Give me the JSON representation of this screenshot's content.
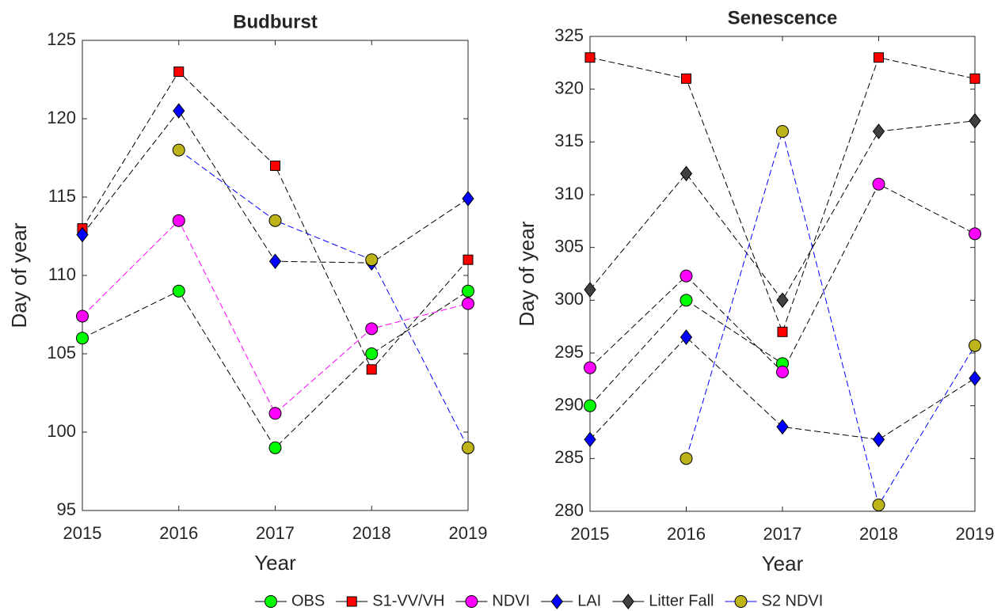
{
  "chart_data": [
    {
      "type": "line",
      "title": "Budburst",
      "x_label": "Year",
      "y_label": "Day of year",
      "x": [
        2015,
        2016,
        2017,
        2018,
        2019
      ],
      "xlim": [
        2015,
        2019
      ],
      "xticks": [
        2015,
        2016,
        2017,
        2018,
        2019
      ],
      "ylim": [
        95,
        125
      ],
      "yticks": [
        95,
        100,
        105,
        110,
        115,
        120,
        125
      ],
      "grid": false,
      "series": [
        {
          "name": "OBS",
          "color": "#00ff00",
          "line_color": "#000000",
          "marker": "circle",
          "values": [
            106,
            109,
            99,
            105,
            109
          ]
        },
        {
          "name": "S1-VV/VH",
          "color": "#ff0000",
          "line_color": "#000000",
          "marker": "square",
          "values": [
            113,
            123,
            117,
            104,
            111
          ]
        },
        {
          "name": "NDVI",
          "color": "#ff00ff",
          "line_color": "#ff00ff",
          "marker": "circle",
          "values": [
            107.4,
            113.5,
            101.2,
            106.6,
            108.2
          ]
        },
        {
          "name": "LAI",
          "color": "#0000ff",
          "line_color": "#000000",
          "marker": "diamond",
          "values": [
            112.6,
            120.5,
            110.9,
            110.8,
            114.9
          ]
        },
        {
          "name": "S2 NDVI",
          "color": "#bcb418",
          "line_color": "#0000ff",
          "marker": "circle",
          "values": [
            null,
            118,
            113.5,
            111,
            99
          ]
        }
      ]
    },
    {
      "type": "line",
      "title": "Senescence",
      "x_label": "Year",
      "y_label": "Day of year",
      "x": [
        2015,
        2016,
        2017,
        2018,
        2019
      ],
      "xlim": [
        2015,
        2019
      ],
      "xticks": [
        2015,
        2016,
        2017,
        2018,
        2019
      ],
      "ylim": [
        280,
        325
      ],
      "yticks": [
        280,
        285,
        290,
        295,
        300,
        305,
        310,
        315,
        320,
        325
      ],
      "grid": false,
      "series": [
        {
          "name": "OBS",
          "color": "#00ff00",
          "line_color": "#000000",
          "marker": "circle",
          "values": [
            290,
            300,
            294,
            null,
            null
          ]
        },
        {
          "name": "S1-VV/VH",
          "color": "#ff0000",
          "line_color": "#000000",
          "marker": "square",
          "values": [
            323,
            321,
            297,
            323,
            321
          ]
        },
        {
          "name": "NDVI",
          "color": "#ff00ff",
          "line_color": "#000000",
          "marker": "circle",
          "values": [
            293.6,
            302.3,
            293.2,
            311,
            306.3
          ]
        },
        {
          "name": "LAI",
          "color": "#0000ff",
          "line_color": "#000000",
          "marker": "diamond",
          "values": [
            286.8,
            296.5,
            288,
            286.8,
            292.6
          ]
        },
        {
          "name": "Litter Fall",
          "color": "#404040",
          "line_color": "#000000",
          "marker": "diamond",
          "values": [
            301,
            312,
            300,
            316,
            317
          ]
        },
        {
          "name": "S2 NDVI",
          "color": "#bcb418",
          "line_color": "#0000ff",
          "marker": "circle",
          "values": [
            null,
            285,
            316,
            280.6,
            295.7
          ]
        }
      ]
    }
  ]
}
